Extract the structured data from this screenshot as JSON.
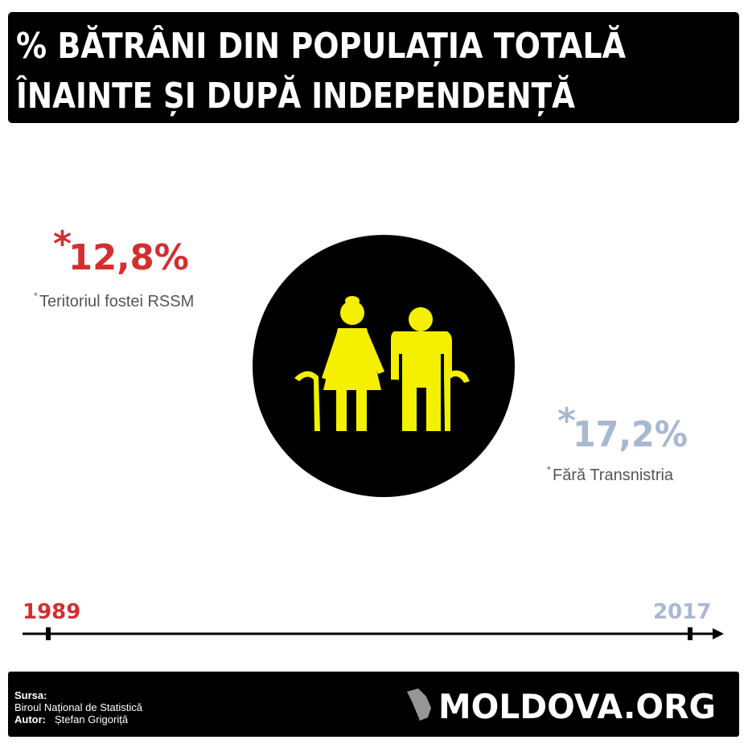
{
  "header": {
    "title_lines": [
      "% BĂTRÂNI DIN POPULAȚIA TOTALĂ",
      "ÎNAINTE ȘI DUPĂ INDEPENDENȚĂ"
    ]
  },
  "stats": [
    {
      "marker": "*",
      "value": "12,8%",
      "note": "Teritoriul fostei RSSM"
    },
    {
      "marker": "*",
      "value": "17,2%",
      "note": "Fără Transnistria"
    }
  ],
  "timeline": {
    "start": "1989",
    "end": "2017"
  },
  "footer": {
    "source_label": "Sursa:",
    "source": "Biroul Național de Statistică",
    "author_label": "Autor:",
    "author": "Ștefan Grigoriță",
    "logo": "MOLDOVA.ORG"
  }
}
